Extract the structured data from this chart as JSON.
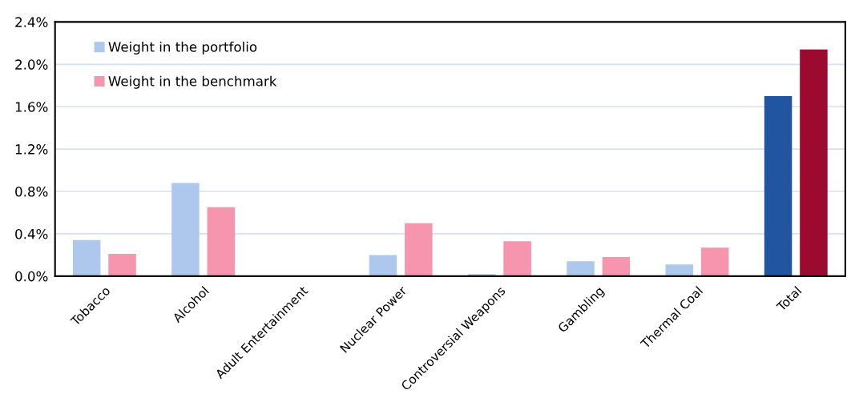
{
  "chart_data": {
    "type": "bar",
    "categories": [
      "Tobacco",
      "Alcohol",
      "Adult Entertainment",
      "Nuclear Power",
      "Controversial Weapons",
      "Gambling",
      "Thermal Coal",
      "Total"
    ],
    "series": [
      {
        "name": "Weight in the portfolio",
        "color": "#aec7ed",
        "colors": [
          "#aec7ed",
          "#aec7ed",
          "#aec7ed",
          "#aec7ed",
          "#aec7ed",
          "#aec7ed",
          "#aec7ed",
          "#2255a0"
        ],
        "values": [
          0.34,
          0.88,
          0.0,
          0.2,
          0.02,
          0.14,
          0.11,
          1.7
        ]
      },
      {
        "name": "Weight in the benchmark",
        "color": "#f794ae",
        "colors": [
          "#f794ae",
          "#f794ae",
          "#f794ae",
          "#f794ae",
          "#f794ae",
          "#f794ae",
          "#f794ae",
          "#9c0a30"
        ],
        "values": [
          0.21,
          0.65,
          null,
          0.5,
          0.33,
          0.18,
          0.27,
          2.14
        ]
      }
    ],
    "ylim": [
      0,
      2.4
    ],
    "yticks": [
      {
        "value": 0,
        "label": "0.0%"
      },
      {
        "value": 0.4,
        "label": "0.4%"
      },
      {
        "value": 0.8,
        "label": "0.8%"
      },
      {
        "value": 1.2,
        "label": "1.2%"
      },
      {
        "value": 1.6,
        "label": "1.6%"
      },
      {
        "value": 2.0,
        "label": "2.0%"
      },
      {
        "value": 2.4,
        "label": "2.4%"
      }
    ],
    "grid": "y",
    "legend": "top left"
  }
}
